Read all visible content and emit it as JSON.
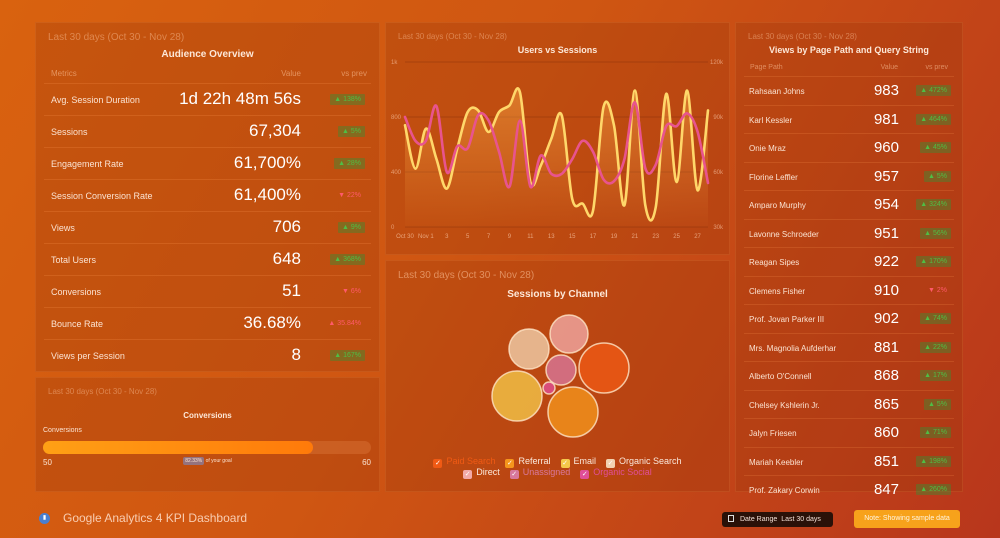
{
  "range_label": "Last 30 days (Oct 30 - Nov 28)",
  "audience": {
    "title": "Audience Overview",
    "headers": [
      "Metrics",
      "Value",
      "vs prev"
    ],
    "rows": [
      {
        "label": "Avg. Session Duration",
        "value": "1d 22h 48m 56s",
        "change": "▲ 138%",
        "dir": "up"
      },
      {
        "label": "Sessions",
        "value": "67,304",
        "change": "▲ 5%",
        "dir": "up"
      },
      {
        "label": "Engagement Rate",
        "value": "61,700%",
        "change": "▲ 28%",
        "dir": "up"
      },
      {
        "label": "Session Conversion Rate",
        "value": "61,400%",
        "change": "▼ 22%",
        "dir": "down"
      },
      {
        "label": "Views",
        "value": "706",
        "change": "▲ 9%",
        "dir": "up"
      },
      {
        "label": "Total Users",
        "value": "648",
        "change": "▲ 368%",
        "dir": "up"
      },
      {
        "label": "Conversions",
        "value": "51",
        "change": "▼ 6%",
        "dir": "down"
      },
      {
        "label": "Bounce Rate",
        "value": "36.68%",
        "change": "▲ 35.84%",
        "dir": "down"
      },
      {
        "label": "Views per Session",
        "value": "8",
        "change": "▲ 167%",
        "dir": "up"
      }
    ]
  },
  "conversions": {
    "title": "Conversions",
    "label": "Conversions",
    "min": "50",
    "max": "60",
    "progress_pct": 82.33,
    "goal_pct": "82.33%",
    "goal_text": "of your goal"
  },
  "chart_data": [
    {
      "type": "line",
      "title": "Users vs Sessions",
      "x": [
        "Oct 30",
        "Oct 31",
        "Nov 1",
        "Nov 2",
        "Nov 3",
        "Nov 4",
        "Nov 5",
        "Nov 6",
        "Nov 7",
        "Nov 8",
        "Nov 9",
        "Nov 10",
        "Nov 11",
        "Nov 12",
        "Nov 13",
        "Nov 14",
        "Nov 15",
        "Nov 16",
        "Nov 17",
        "Nov 18",
        "Nov 19",
        "Nov 20",
        "Nov 21",
        "Nov 22",
        "Nov 23",
        "Nov 24",
        "Nov 25",
        "Nov 26",
        "Nov 27",
        "Nov 28"
      ],
      "x_tick_labels": [
        "Oct 30",
        "Nov 1",
        "3",
        "5",
        "7",
        "9",
        "11",
        "13",
        "15",
        "17",
        "19",
        "21",
        "23",
        "25",
        "27"
      ],
      "y_left_ticks": [
        "0",
        "400",
        "800",
        "1k"
      ],
      "y_right_ticks": [
        "30k",
        "60k",
        "90k",
        "120k"
      ],
      "series": [
        {
          "axis": "left",
          "color": "#ffd76a",
          "values": [
            740,
            424,
            715,
            497,
            279,
            570,
            818,
            824,
            691,
            818,
            842,
            890,
            327,
            448,
            642,
            806,
            206,
            170,
            121,
            836,
            740,
            158,
            896,
            158,
            145,
            884,
            327,
            896,
            267,
            824
          ]
        },
        {
          "axis": "right",
          "color": "#e8548e",
          "values": [
            90000,
            77000,
            77000,
            96000,
            60000,
            74000,
            73000,
            91000,
            88000,
            71000,
            52000,
            88000,
            52000,
            69000,
            59000,
            59000,
            67000,
            77000,
            71000,
            56000,
            55000,
            67000,
            98000,
            62000,
            64000,
            85000,
            85000,
            92000,
            82000,
            54000
          ]
        }
      ]
    },
    {
      "type": "bubble",
      "title": "Sessions by Channel",
      "series": [
        {
          "name": "Paid Search",
          "color": "#f05a14",
          "size": 625
        },
        {
          "name": "Referral",
          "color": "#f5961c",
          "size": 625
        },
        {
          "name": "Email",
          "color": "#f5c84a",
          "size": 625
        },
        {
          "name": "Organic Search",
          "color": "#f2d2b0",
          "size": 400
        },
        {
          "name": "Direct",
          "color": "#f2aaa8",
          "size": 361
        },
        {
          "name": "Unassigned",
          "color": "#d8789c",
          "size": 225
        },
        {
          "name": "Organic Social",
          "color": "#e04f98",
          "size": 36
        }
      ]
    }
  ],
  "pages": {
    "title": "Views by Page Path and Query String",
    "headers": [
      "Page Path",
      "Value",
      "vs prev"
    ],
    "rows": [
      {
        "label": "Rahsaan Johns",
        "value": "983",
        "change": "▲ 472%",
        "dir": "up"
      },
      {
        "label": "Karl Kessler",
        "value": "981",
        "change": "▲ 464%",
        "dir": "up"
      },
      {
        "label": "Onie Mraz",
        "value": "960",
        "change": "▲ 45%",
        "dir": "up"
      },
      {
        "label": "Florine Leffler",
        "value": "957",
        "change": "▲ 5%",
        "dir": "up"
      },
      {
        "label": "Amparo Murphy",
        "value": "954",
        "change": "▲ 324%",
        "dir": "up"
      },
      {
        "label": "Lavonne Schroeder",
        "value": "951",
        "change": "▲ 56%",
        "dir": "up"
      },
      {
        "label": "Reagan Sipes",
        "value": "922",
        "change": "▲ 170%",
        "dir": "up"
      },
      {
        "label": "Clemens Fisher",
        "value": "910",
        "change": "▼ 2%",
        "dir": "down"
      },
      {
        "label": "Prof. Jovan Parker III",
        "value": "902",
        "change": "▲ 74%",
        "dir": "up"
      },
      {
        "label": "Mrs. Magnolia Aufderhar",
        "value": "881",
        "change": "▲ 22%",
        "dir": "up"
      },
      {
        "label": "Alberto O'Connell",
        "value": "868",
        "change": "▲ 17%",
        "dir": "up"
      },
      {
        "label": "Chelsey Kshlerin Jr.",
        "value": "865",
        "change": "▲ 5%",
        "dir": "up"
      },
      {
        "label": "Jalyn Friesen",
        "value": "860",
        "change": "▲ 71%",
        "dir": "up"
      },
      {
        "label": "Mariah Keebler",
        "value": "851",
        "change": "▲ 198%",
        "dir": "up"
      },
      {
        "label": "Prof. Zakary Corwin",
        "value": "847",
        "change": "▲ 260%",
        "dir": "up"
      }
    ]
  },
  "footer": {
    "title": "Google Analytics 4 KPI Dashboard",
    "date_range_label": "Date Range",
    "date_range_value": "Last 30 days",
    "note": "Note: Showing sample data"
  }
}
